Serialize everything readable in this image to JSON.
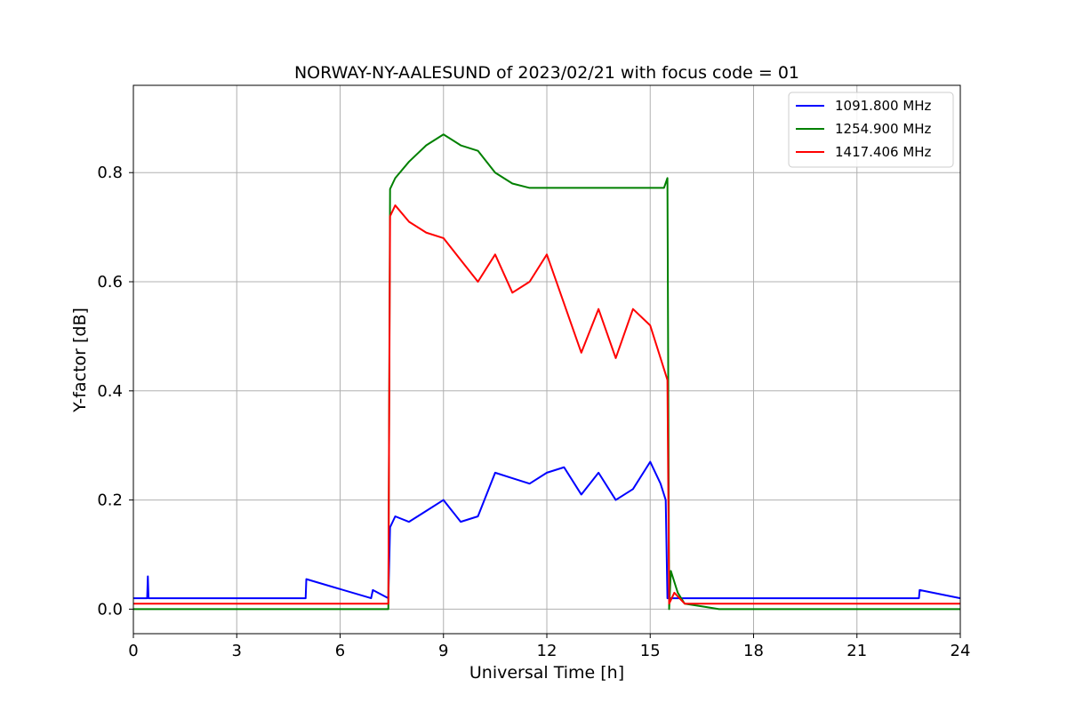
{
  "chart_data": {
    "type": "line",
    "title": "NORWAY-NY-AALESUND of 2023/02/21 with focus code = 01",
    "xlabel": "Universal Time [h]",
    "ylabel": "Y-factor [dB]",
    "xlim": [
      0,
      24
    ],
    "ylim": [
      -0.045,
      0.96
    ],
    "xticks": [
      0,
      3,
      6,
      9,
      12,
      15,
      18,
      21,
      24
    ],
    "xtick_labels": [
      "0",
      "3",
      "6",
      "9",
      "12",
      "15",
      "18",
      "21",
      "24"
    ],
    "yticks": [
      0.0,
      0.2,
      0.4,
      0.6,
      0.8
    ],
    "ytick_labels": [
      "0.0",
      "0.2",
      "0.4",
      "0.6",
      "0.8"
    ],
    "grid": true,
    "legend_position": "top-right",
    "series": [
      {
        "name": "1091.800 MHz",
        "color": "#0000ff",
        "x": [
          0,
          0.4,
          0.42,
          0.44,
          5.0,
          5.02,
          6.9,
          6.95,
          7.4,
          7.45,
          7.6,
          8.0,
          8.5,
          9.0,
          9.5,
          10.0,
          10.5,
          11.0,
          11.5,
          12.0,
          12.5,
          13.0,
          13.5,
          14.0,
          14.5,
          15.0,
          15.3,
          15.45,
          15.5,
          15.55,
          16.0,
          20.0,
          22.8,
          22.82,
          24
        ],
        "y": [
          0.02,
          0.02,
          0.06,
          0.02,
          0.02,
          0.055,
          0.02,
          0.035,
          0.02,
          0.15,
          0.17,
          0.16,
          0.18,
          0.2,
          0.16,
          0.17,
          0.25,
          0.24,
          0.23,
          0.25,
          0.26,
          0.21,
          0.25,
          0.2,
          0.22,
          0.27,
          0.23,
          0.2,
          0.02,
          0.02,
          0.02,
          0.02,
          0.02,
          0.035,
          0.02
        ]
      },
      {
        "name": "1254.900 MHz",
        "color": "#008000",
        "x": [
          0,
          7.4,
          7.45,
          7.6,
          8.0,
          8.5,
          9.0,
          9.5,
          10.0,
          10.5,
          11.0,
          11.5,
          15.4,
          15.5,
          15.55,
          15.6,
          15.8,
          16.0,
          16.5,
          17.0,
          24
        ],
        "y": [
          0.0,
          0.0,
          0.77,
          0.79,
          0.82,
          0.85,
          0.87,
          0.85,
          0.84,
          0.8,
          0.78,
          0.772,
          0.772,
          0.79,
          0.0,
          0.07,
          0.03,
          0.01,
          0.005,
          0.0,
          0.0
        ]
      },
      {
        "name": "1417.406 MHz",
        "color": "#ff0000",
        "x": [
          0,
          7.4,
          7.45,
          7.6,
          8.0,
          8.5,
          9.0,
          9.5,
          10.0,
          10.5,
          11.0,
          11.5,
          12.0,
          12.5,
          13.0,
          13.5,
          14.0,
          14.5,
          15.0,
          15.3,
          15.5,
          15.55,
          15.7,
          16.0,
          24
        ],
        "y": [
          0.01,
          0.01,
          0.72,
          0.74,
          0.71,
          0.69,
          0.68,
          0.64,
          0.6,
          0.65,
          0.58,
          0.6,
          0.65,
          0.56,
          0.47,
          0.55,
          0.46,
          0.55,
          0.52,
          0.46,
          0.42,
          0.01,
          0.03,
          0.01,
          0.01
        ]
      }
    ]
  }
}
